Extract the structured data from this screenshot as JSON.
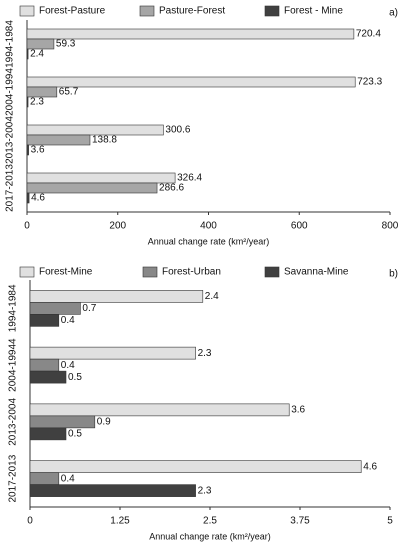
{
  "chart_data": [
    {
      "type": "bar",
      "orientation": "horizontal",
      "panel_label": "a)",
      "categories": [
        "1994-1984",
        "2004-1994",
        "2013-2004",
        "2017-2013"
      ],
      "series": [
        {
          "name": "Forest-Pasture",
          "color": "#e0e0e0",
          "values": [
            720.4,
            723.3,
            300.6,
            326.4
          ]
        },
        {
          "name": "Pasture-Forest",
          "color": "#a6a6a6",
          "values": [
            59.3,
            65.7,
            138.8,
            286.6
          ]
        },
        {
          "name": "Forest - Mine",
          "color": "#404040",
          "values": [
            2.4,
            2.3,
            3.6,
            4.6
          ]
        }
      ],
      "xlim": [
        0,
        800
      ],
      "xticks": [
        0,
        200,
        400,
        600,
        800
      ],
      "xlabel": "Annual change rate (km²/year)",
      "legend": "top"
    },
    {
      "type": "bar",
      "orientation": "horizontal",
      "panel_label": "b)",
      "categories": [
        "1994-1984",
        "2004-19944",
        "2013-2004",
        "2017-2013"
      ],
      "series": [
        {
          "name": "Forest-Mine",
          "color": "#e0e0e0",
          "values": [
            2.4,
            2.3,
            3.6,
            4.6
          ]
        },
        {
          "name": "Forest-Urban",
          "color": "#888888",
          "values": [
            0.7,
            0.4,
            0.9,
            0.4
          ]
        },
        {
          "name": "Savanna-Mine",
          "color": "#404040",
          "values": [
            0.4,
            0.5,
            0.5,
            2.3
          ]
        }
      ],
      "xlim": [
        0,
        5
      ],
      "xticks": [
        0,
        1.25,
        2.5,
        3.75,
        5
      ],
      "xlabel": "Annual change rate (km²/year)",
      "legend": "top"
    }
  ]
}
